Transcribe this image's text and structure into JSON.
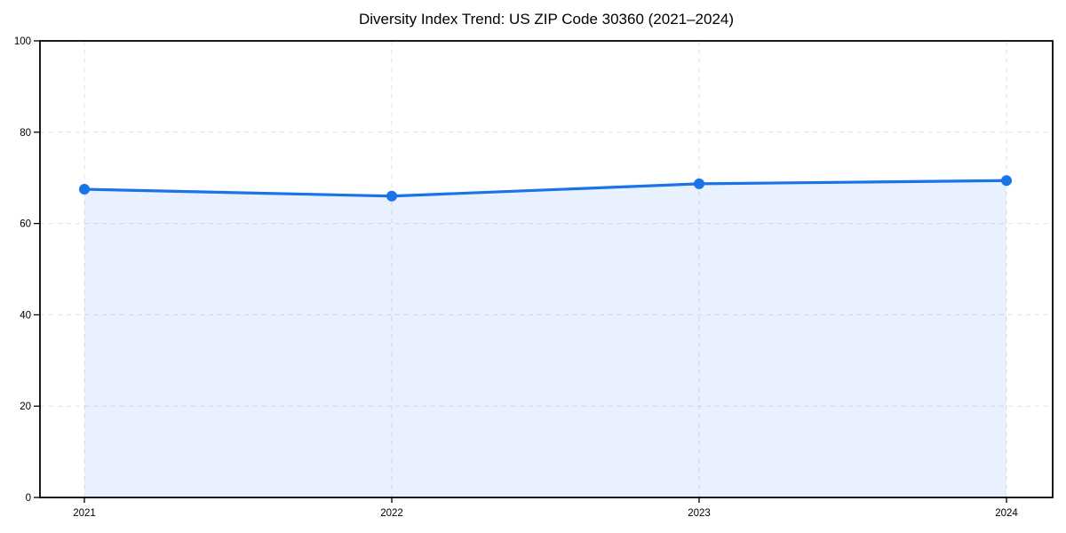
{
  "figure": {
    "background": "#ffffff"
  },
  "chart_data": {
    "type": "line",
    "title": "Diversity Index Trend: US ZIP Code 30360 (2021–2024)",
    "categories": [
      "2021",
      "2022",
      "2023",
      "2024"
    ],
    "series": [
      {
        "name": "Diversity Index",
        "values": [
          67.5,
          66.0,
          68.7,
          69.4
        ]
      }
    ],
    "xlabel": "",
    "ylabel": "",
    "ylim": [
      0,
      100
    ],
    "yticks": [
      0,
      20,
      40,
      60,
      80,
      100
    ],
    "grid": "dashed-both-directions",
    "legend": "none",
    "area_fill": true,
    "markers": true,
    "colors": {
      "line": "#1a73e8",
      "area": "rgba(26,115,232,0.10)",
      "grid": "#e0e0e0",
      "axis": "#000000",
      "text": "#000000",
      "background": "#ffffff"
    }
  }
}
